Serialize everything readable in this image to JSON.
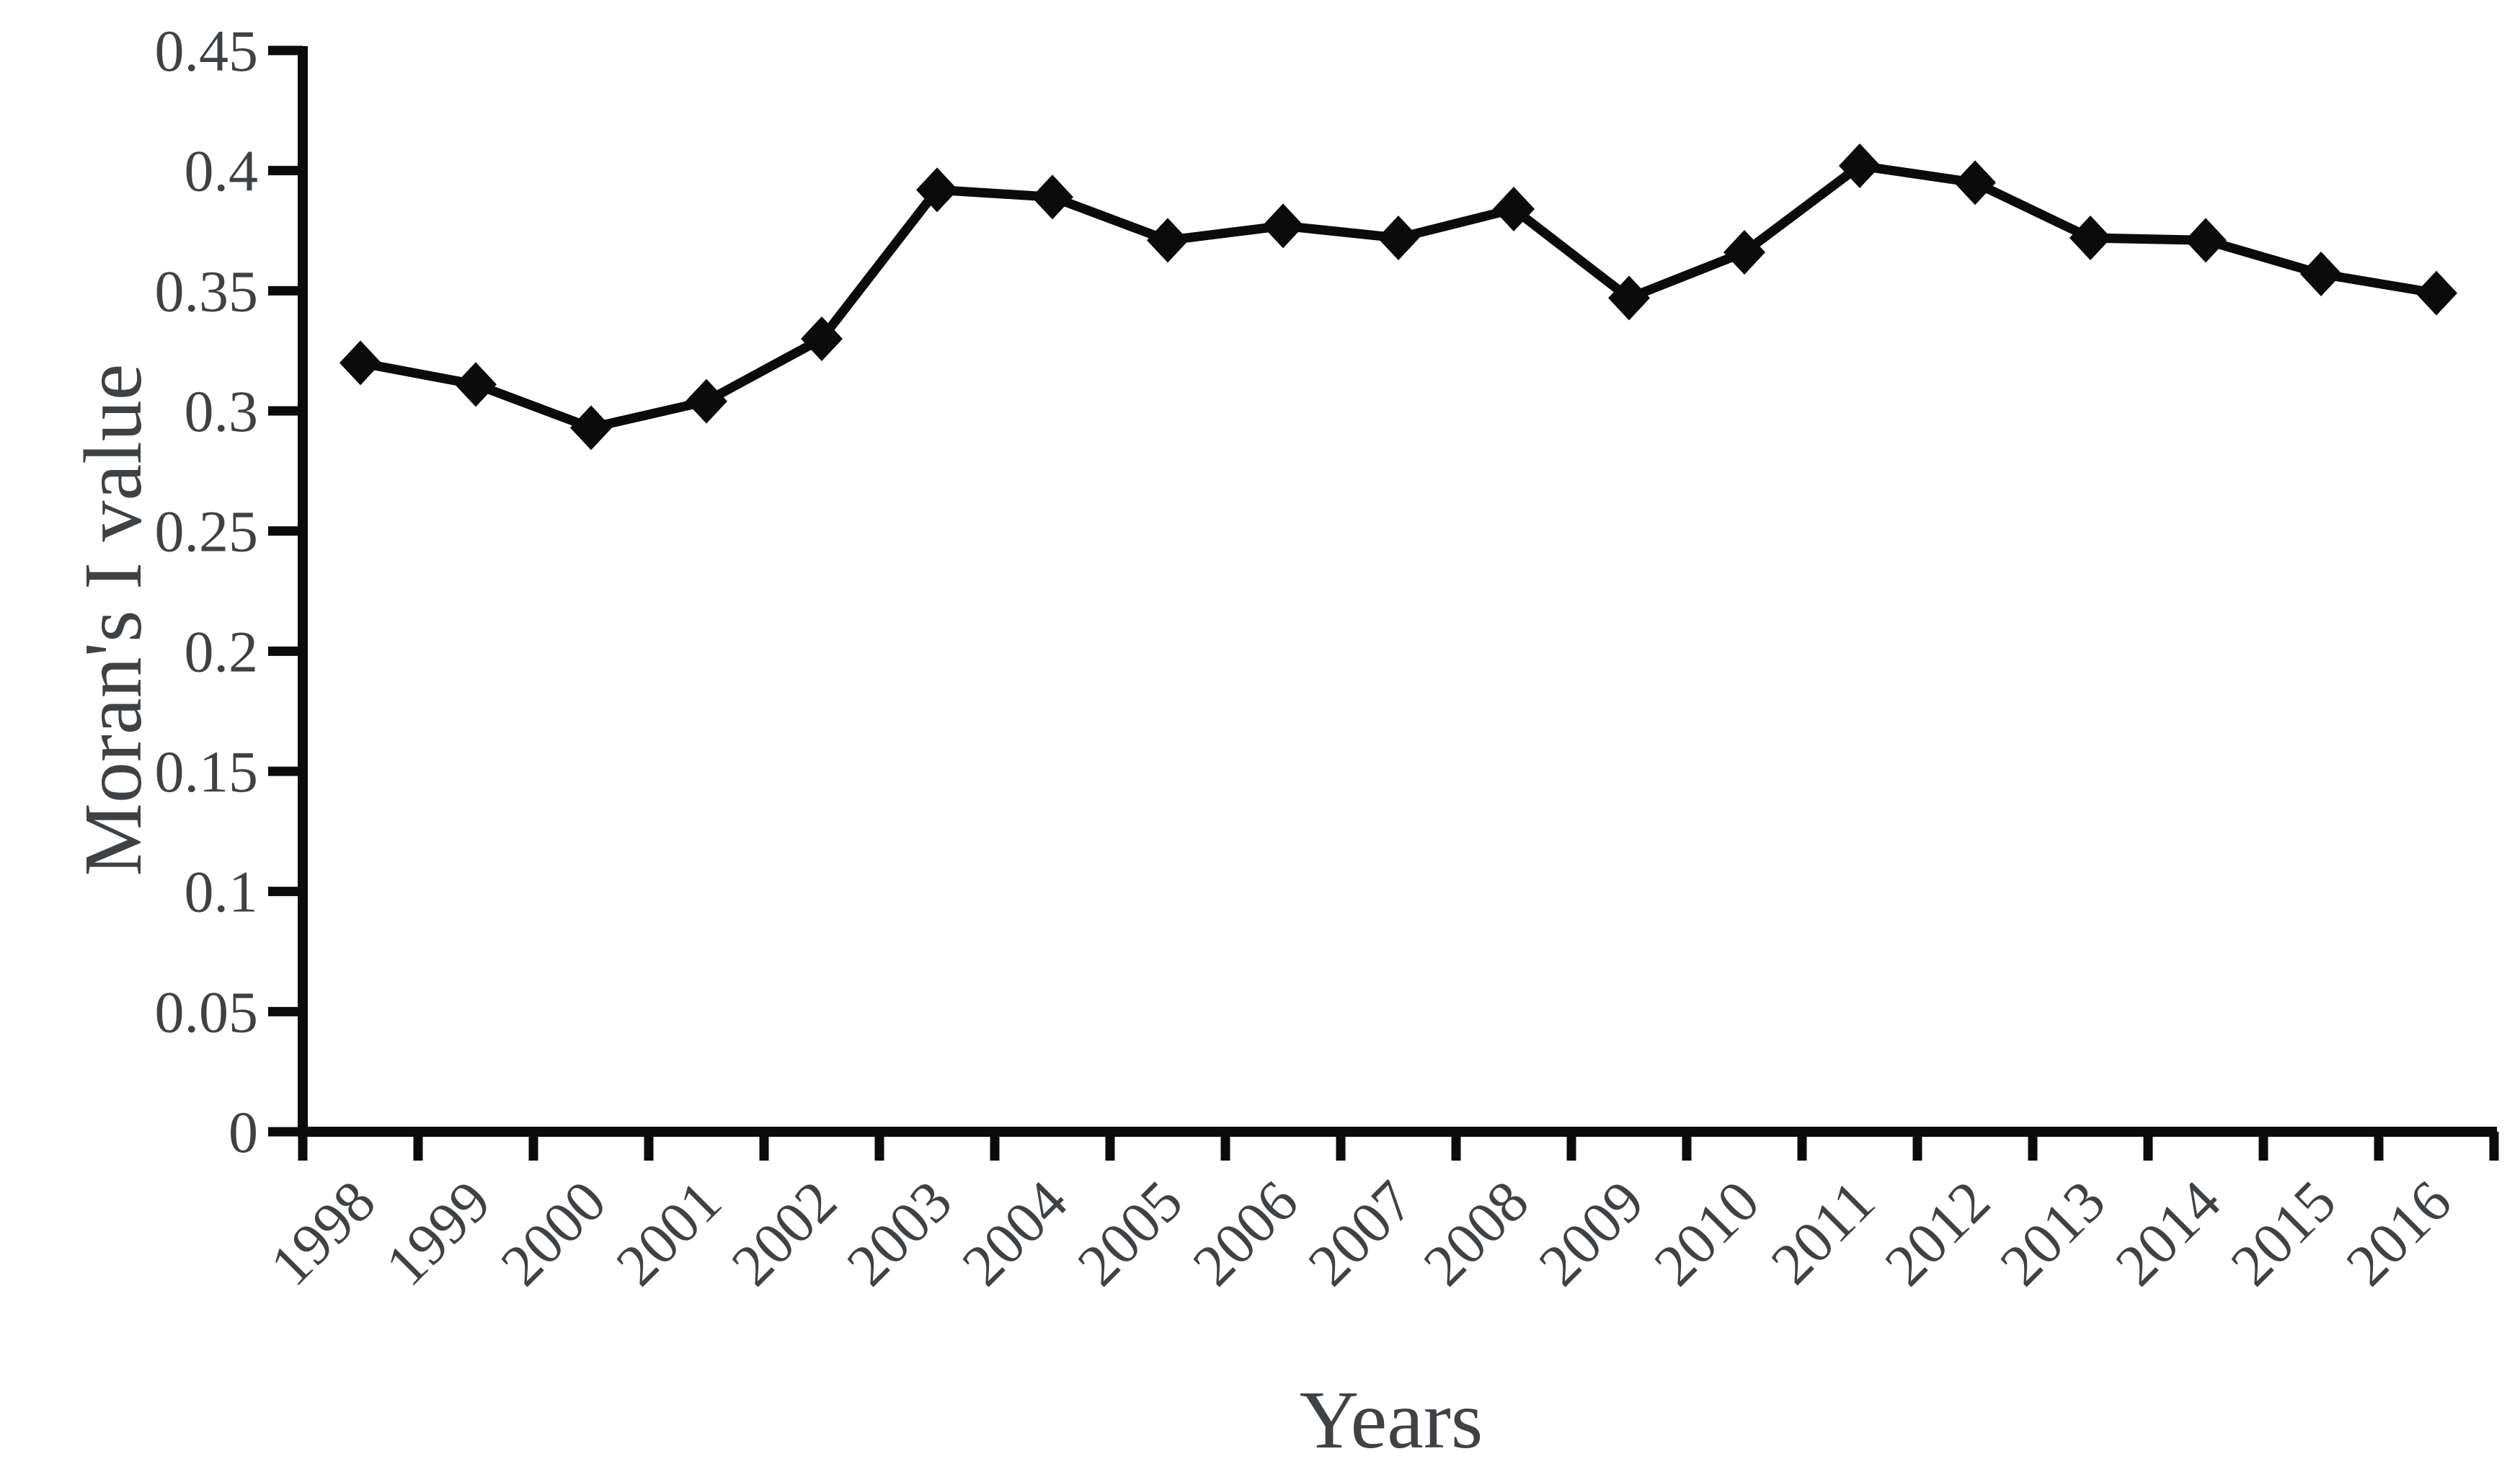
{
  "chart_data": {
    "type": "line",
    "title": "",
    "xlabel": "Years",
    "ylabel": "Moran's I value",
    "categories": [
      "1998",
      "1999",
      "2000",
      "2001",
      "2002",
      "2003",
      "2004",
      "2005",
      "2006",
      "2007",
      "2008",
      "2009",
      "2010",
      "2011",
      "2012",
      "2013",
      "2014",
      "2015",
      "2016"
    ],
    "series": [
      {
        "name": "Moran's I value",
        "values": [
          0.32,
          0.311,
          0.293,
          0.304,
          0.33,
          0.392,
          0.389,
          0.371,
          0.377,
          0.372,
          0.384,
          0.347,
          0.366,
          0.402,
          0.395,
          0.372,
          0.371,
          0.357,
          0.349
        ]
      }
    ],
    "ylim": [
      0,
      0.45
    ],
    "ytick_labels": [
      "0",
      "0.05",
      "0.1",
      "0.15",
      "0.2",
      "0.25",
      "0.3",
      "0.35",
      "0.4",
      "0.45"
    ],
    "yticks": [
      0,
      0.05,
      0.1,
      0.15,
      0.2,
      0.25,
      0.3,
      0.35,
      0.4,
      0.45
    ],
    "grid": false,
    "legend_position": "none",
    "marker": "diamond",
    "line_color": "#0b0b0b",
    "marker_color": "#0b0b0b",
    "axis_color": "#0b0b0b",
    "tick_label_color": "#3f4245",
    "axis_title_color": "#3f4245",
    "background_color": "#ffffff",
    "x_tick_label_rotation_deg": -45
  }
}
